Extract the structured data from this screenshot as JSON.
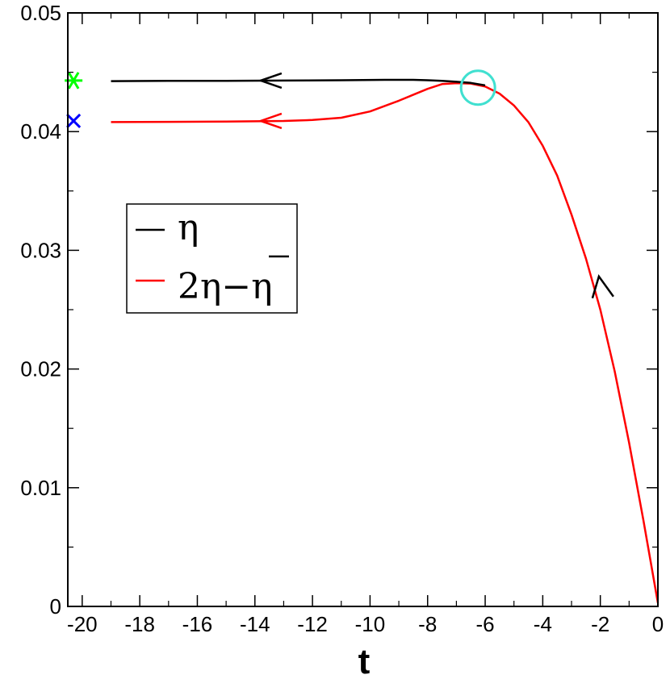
{
  "chart_data": {
    "type": "line",
    "xlabel": "t",
    "ylabel": "",
    "xlim": [
      -20.5,
      0
    ],
    "ylim": [
      0,
      0.05
    ],
    "x_ticks": [
      -20,
      -18,
      -16,
      -14,
      -12,
      -10,
      -8,
      -6,
      -4,
      -2,
      0
    ],
    "x_tick_labels": [
      "-20",
      "-18",
      "-16",
      "-14",
      "-12",
      "-10",
      "-8",
      "-6",
      "-4",
      "-2",
      "0"
    ],
    "y_ticks": [
      0,
      0.01,
      0.02,
      0.03,
      0.04,
      0.05
    ],
    "y_tick_labels": [
      "0",
      "0.01",
      "0.02",
      "0.03",
      "0.04",
      "0.05"
    ],
    "grid": false,
    "legend": {
      "placement": "middle-left",
      "entries": [
        {
          "label": "η",
          "color": "#000000"
        },
        {
          "label": "2η−η",
          "color": "#ff0000",
          "overbar_on_last_symbol": true
        }
      ]
    },
    "series": [
      {
        "name": "η",
        "color": "#000000",
        "x": [
          -19.0,
          -17.0,
          -15.0,
          -13.0,
          -11.0,
          -9.5,
          -8.5,
          -8.0,
          -7.5,
          -7.0,
          -6.5,
          -6.0
        ],
        "y": [
          0.04425,
          0.04427,
          0.04428,
          0.0443,
          0.04433,
          0.04436,
          0.04436,
          0.04433,
          0.04428,
          0.0442,
          0.0441,
          0.0439
        ]
      },
      {
        "name": "2η−η",
        "color": "#ff0000",
        "x": [
          -19.0,
          -17.0,
          -15.0,
          -13.0,
          -12.0,
          -11.0,
          -10.0,
          -9.0,
          -8.0,
          -7.5,
          -7.0,
          -6.5,
          -6.0,
          -5.5,
          -5.0,
          -4.5,
          -4.0,
          -3.5,
          -3.0,
          -2.5,
          -2.0,
          -1.5,
          -1.0,
          -0.5,
          0.0
        ],
        "y": [
          0.0408,
          0.04082,
          0.04085,
          0.0409,
          0.04098,
          0.04117,
          0.0417,
          0.0426,
          0.0436,
          0.044,
          0.04408,
          0.04405,
          0.0438,
          0.0432,
          0.0422,
          0.0408,
          0.0388,
          0.0363,
          0.033,
          0.0293,
          0.025,
          0.0198,
          0.0138,
          0.0072,
          0.0003
        ]
      }
    ],
    "arrows": [
      {
        "x": -13.8,
        "y": 0.0443,
        "direction": "left",
        "color": "#000000"
      },
      {
        "x": -13.8,
        "y": 0.0409,
        "direction": "left",
        "color": "#ff0000"
      },
      {
        "x": -2.05,
        "y": 0.0278,
        "direction": "up",
        "color": "#000000"
      }
    ],
    "markers": [
      {
        "shape": "circle",
        "x": -6.25,
        "y": 0.0437,
        "color": "#40e0d0"
      },
      {
        "shape": "asterisk",
        "x": -20.3,
        "y": 0.0443,
        "color": "#00ff00"
      },
      {
        "shape": "cross",
        "x": -20.3,
        "y": 0.0409,
        "color": "#0000ff"
      }
    ]
  }
}
